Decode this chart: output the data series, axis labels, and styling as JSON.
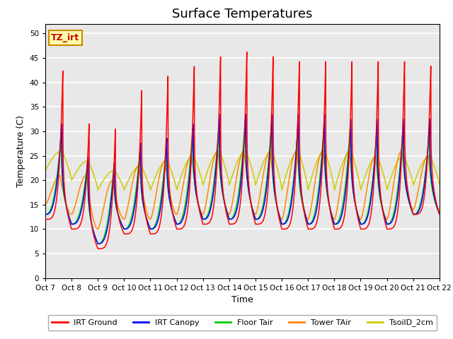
{
  "title": "Surface Temperatures",
  "xlabel": "Time",
  "ylabel": "Temperature (C)",
  "ylim": [
    0,
    52
  ],
  "yticks": [
    0,
    5,
    10,
    15,
    20,
    25,
    30,
    35,
    40,
    45,
    50
  ],
  "x_labels": [
    "Oct 7",
    "Oct 8",
    "Oct 9",
    "Oct 10",
    "Oct 11",
    "Oct 12",
    "Oct 13",
    "Oct 14",
    "Oct 15",
    "Oct 16",
    "Oct 17",
    "Oct 18",
    "Oct 19",
    "Oct 20",
    "Oct 21",
    "Oct 22"
  ],
  "legend": [
    "IRT Ground",
    "IRT Canopy",
    "Floor Tair",
    "Tower TAir",
    "TsoilD_2cm"
  ],
  "legend_colors": [
    "#ff0000",
    "#0000ff",
    "#00cc00",
    "#ff8800",
    "#cccc00"
  ],
  "annotation_text": "TZ_irt",
  "annotation_bg": "#ffffaa",
  "annotation_border": "#cc8800",
  "bg_color": "#e8e8e8",
  "grid_color": "#ffffff",
  "title_fontsize": 13,
  "irt_ground_peaks": [
    43,
    32,
    31,
    39,
    42,
    44,
    46,
    47,
    46,
    45,
    45,
    45,
    45,
    45,
    44
  ],
  "irt_ground_nights": [
    12,
    10,
    6,
    9,
    9,
    10,
    11,
    11,
    11,
    10,
    10,
    10,
    10,
    10,
    13
  ],
  "canopy_peaks": [
    32,
    25,
    24,
    28,
    29,
    32,
    34,
    34,
    34,
    34,
    34,
    33,
    33,
    33,
    33
  ],
  "canopy_nights": [
    13,
    11,
    7,
    10,
    10,
    11,
    12,
    12,
    12,
    11,
    11,
    11,
    11,
    11,
    13
  ],
  "floor_peaks": [
    30,
    24,
    23,
    27,
    28,
    31,
    32,
    33,
    32,
    31,
    32,
    32,
    30,
    31,
    30
  ],
  "floor_nights": [
    13,
    11,
    7,
    10,
    10,
    11,
    12,
    12,
    12,
    11,
    11,
    11,
    11,
    11,
    13
  ],
  "tower_peaks": [
    21,
    21,
    20,
    23,
    24,
    25,
    26,
    26,
    26,
    26,
    26,
    26,
    25,
    26,
    25
  ],
  "tower_nights": [
    15,
    13,
    10,
    12,
    12,
    13,
    13,
    13,
    13,
    12,
    12,
    12,
    12,
    12,
    14
  ],
  "tsoil_peaks": [
    26,
    24,
    22,
    23,
    24,
    25,
    26,
    26,
    26,
    26,
    26,
    26,
    25,
    25,
    25
  ],
  "tsoil_nights": [
    22,
    20,
    18,
    18,
    18,
    18,
    19,
    19,
    19,
    18,
    18,
    18,
    18,
    18,
    19
  ]
}
